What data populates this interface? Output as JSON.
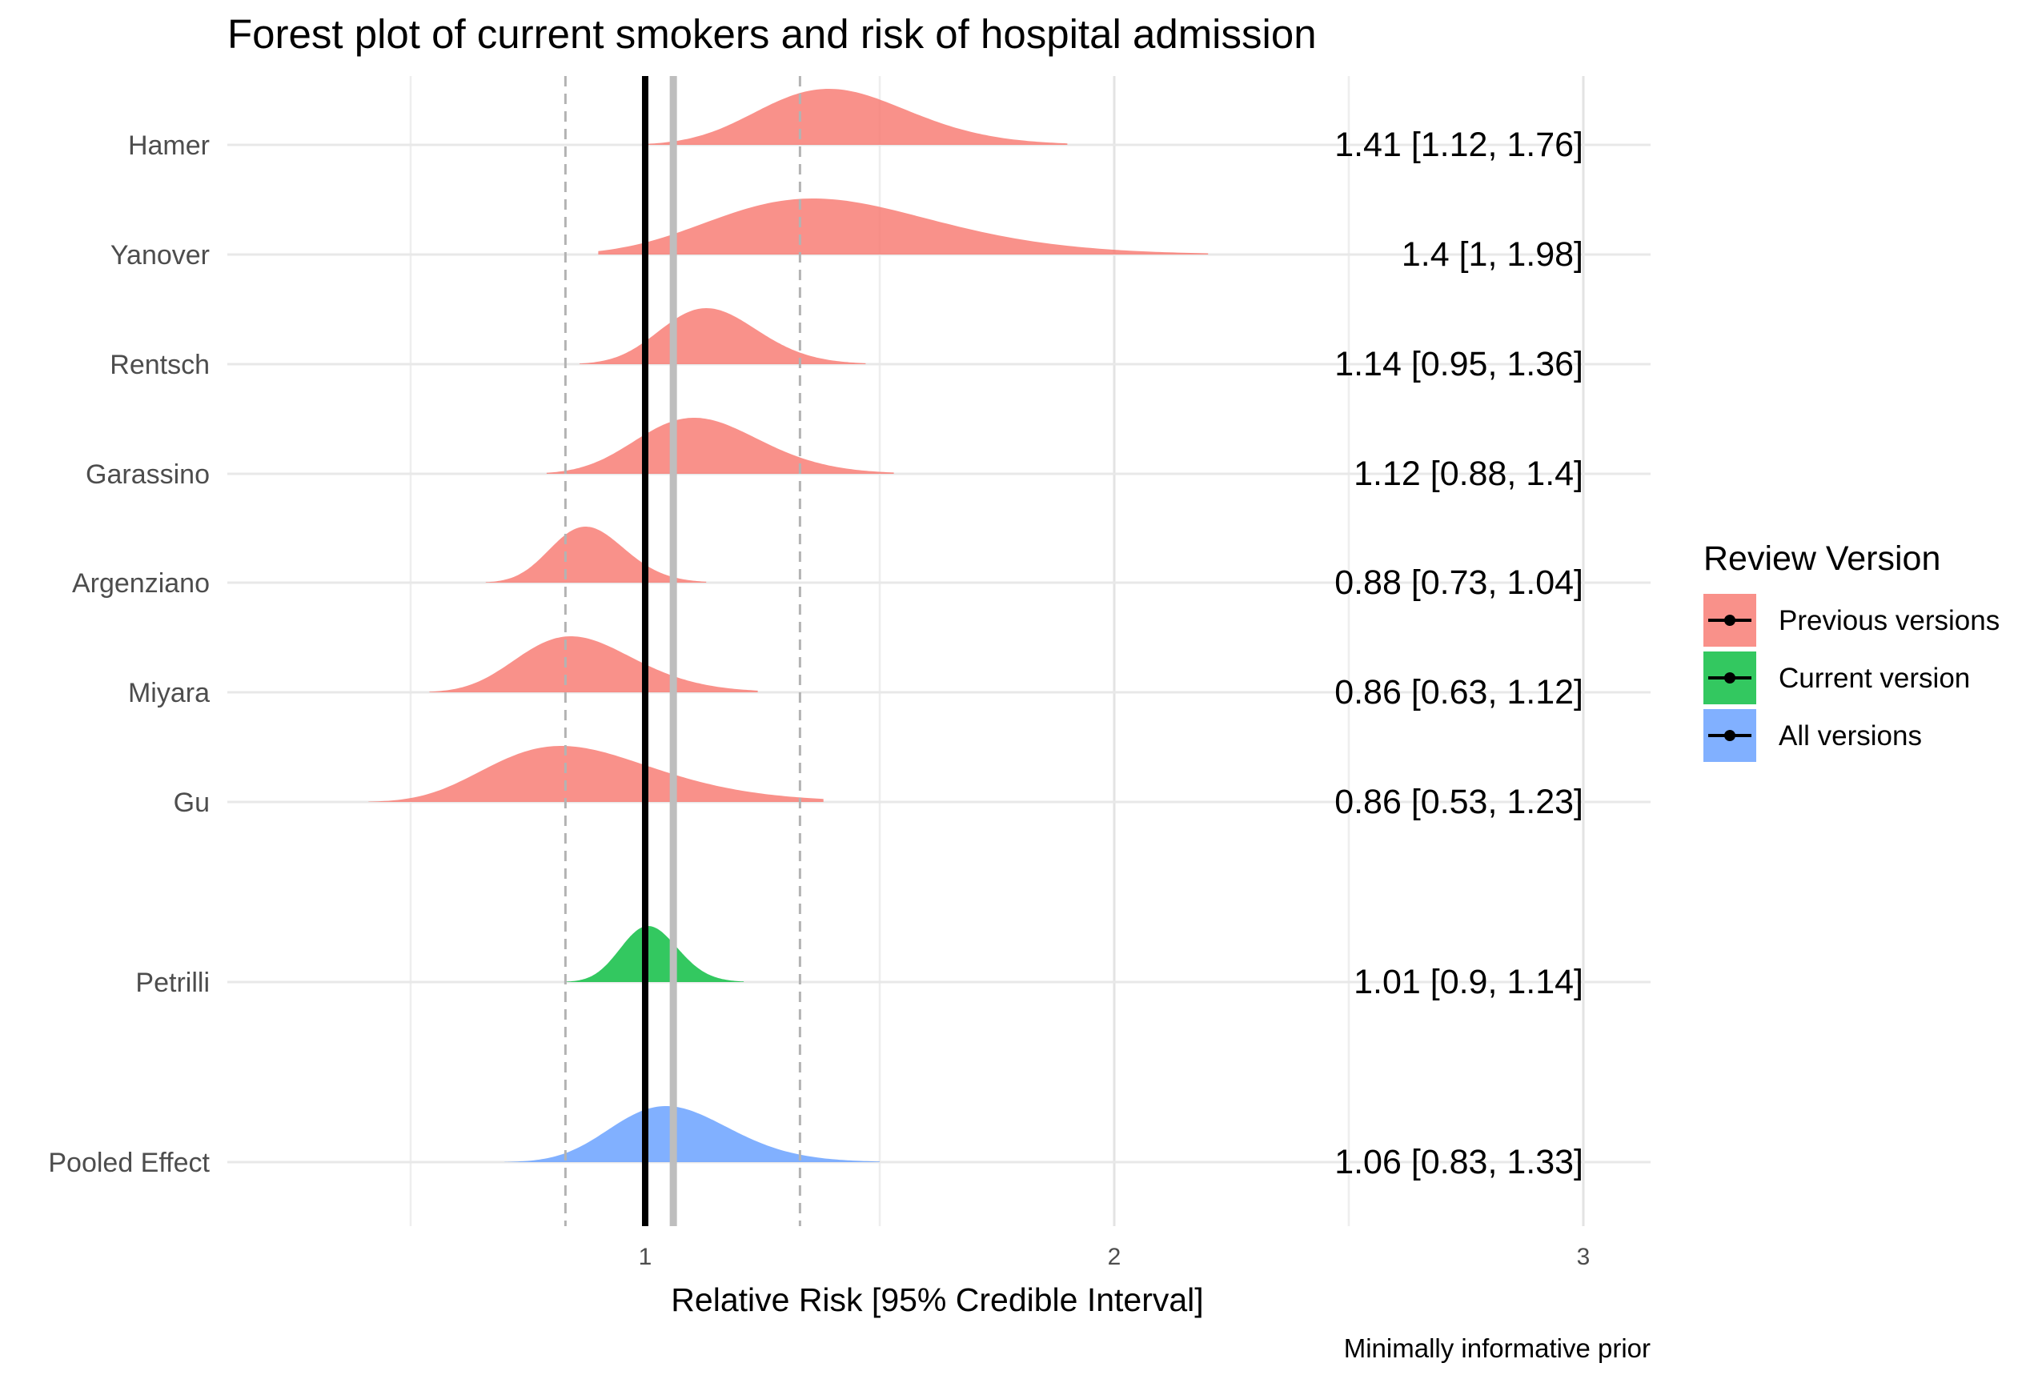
{
  "chart_data": {
    "type": "forest",
    "title": "Forest plot of current smokers and risk of hospital admission",
    "xlabel": "Relative Risk [95% Credible Interval]",
    "caption": "Minimally informative prior",
    "xlim": [
      0.0,
      3.15
    ],
    "xticks": [
      1,
      2,
      3
    ],
    "xtick_labels": [
      "1",
      "2",
      "3"
    ],
    "grid": true,
    "reference_lines": {
      "null_effect": 1.0,
      "pooled_estimate": 1.06,
      "pooled_interval": [
        0.83,
        1.33
      ]
    },
    "legend": {
      "title": "Review Version",
      "position": "right",
      "entries": [
        {
          "label": "Previous versions",
          "color": "#F8766D"
        },
        {
          "label": "Current version",
          "color": "#00BA38"
        },
        {
          "label": "All versions",
          "color": "#619CFF"
        }
      ]
    },
    "rows": [
      {
        "study": "Hamer",
        "group": "Previous versions",
        "estimate": 1.41,
        "lower": 1.12,
        "upper": 1.76,
        "label": "1.41 [1.12, 1.76]",
        "dist_min": 1.0,
        "dist_max": 1.9
      },
      {
        "study": "Yanover",
        "group": "Previous versions",
        "estimate": 1.4,
        "lower": 1.0,
        "upper": 1.98,
        "label": "1.4 [1, 1.98]",
        "dist_min": 0.9,
        "dist_max": 2.2
      },
      {
        "study": "Rentsch",
        "group": "Previous versions",
        "estimate": 1.14,
        "lower": 0.95,
        "upper": 1.36,
        "label": "1.14 [0.95, 1.36]",
        "dist_min": 0.86,
        "dist_max": 1.47
      },
      {
        "study": "Garassino",
        "group": "Previous versions",
        "estimate": 1.12,
        "lower": 0.88,
        "upper": 1.4,
        "label": "1.12 [0.88, 1.4]",
        "dist_min": 0.79,
        "dist_max": 1.53
      },
      {
        "study": "Argenziano",
        "group": "Previous versions",
        "estimate": 0.88,
        "lower": 0.73,
        "upper": 1.04,
        "label": "0.88 [0.73, 1.04]",
        "dist_min": 0.66,
        "dist_max": 1.13
      },
      {
        "study": "Miyara",
        "group": "Previous versions",
        "estimate": 0.86,
        "lower": 0.63,
        "upper": 1.12,
        "label": "0.86 [0.63, 1.12]",
        "dist_min": 0.54,
        "dist_max": 1.24
      },
      {
        "study": "Gu",
        "group": "Previous versions",
        "estimate": 0.86,
        "lower": 0.53,
        "upper": 1.23,
        "label": "0.86 [0.53, 1.23]",
        "dist_min": 0.41,
        "dist_max": 1.38
      },
      {
        "study": "Petrilli",
        "group": "Current version",
        "estimate": 1.01,
        "lower": 0.9,
        "upper": 1.14,
        "label": "1.01 [0.9, 1.14]",
        "dist_min": 0.83,
        "dist_max": 1.21
      },
      {
        "study": "Pooled Effect",
        "group": "All versions",
        "estimate": 1.06,
        "lower": 0.83,
        "upper": 1.33,
        "label": "1.06 [0.83, 1.33]",
        "dist_min": 0.7,
        "dist_max": 1.5
      }
    ]
  }
}
